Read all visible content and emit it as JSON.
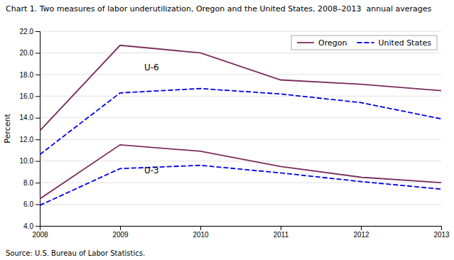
{
  "chart_data": {
    "type": "line",
    "title": "Chart 1. Two measures of labor underutilization, Oregon and the United States, 2008–2013  annual averages",
    "subtitle": "Source: U.S. Bureau of Labor Statistics.",
    "y_label": "Percent",
    "x": [
      2008,
      2009,
      2010,
      2011,
      2012,
      2013
    ],
    "series": [
      {
        "name": "Oregon",
        "color": "#7b2d5e",
        "line_style": "solid",
        "values": [
          12.8,
          20.7,
          20.0,
          17.5,
          17.1,
          16.5
        ]
      },
      {
        "name": "United States",
        "color": "#0000ee",
        "line_style": "dashed",
        "values": [
          10.6,
          16.3,
          16.7,
          16.2,
          15.4,
          13.9
        ]
      },
      {
        "name": "Oregon",
        "color": "#7b2d5e",
        "line_style": "solid",
        "values": [
          6.5,
          11.5,
          10.9,
          9.5,
          8.5,
          8.0
        ]
      },
      {
        "name": "United States",
        "color": "#0000ee",
        "line_style": "dashed",
        "values": [
          5.9,
          9.3,
          9.6,
          8.9,
          8.1,
          7.4
        ]
      }
    ],
    "xlim": [
      2008,
      2013
    ],
    "xticks": [
      2008,
      2009,
      2010,
      2011,
      2012,
      2013
    ],
    "ylim": [
      4.0,
      22.0
    ],
    "yticks": [
      {
        "value": 4.0,
        "label": "4.0"
      },
      {
        "value": 6.0,
        "label": "6.0"
      },
      {
        "value": 8.0,
        "label": "8.0"
      },
      {
        "value": 10.0,
        "label": "10.0"
      },
      {
        "value": 12.0,
        "label": "12.0"
      },
      {
        "value": 14.0,
        "label": "14.0"
      },
      {
        "value": 16.0,
        "label": "16.0"
      },
      {
        "value": 18.0,
        "label": "18.0"
      },
      {
        "value": 20.0,
        "label": "20.0"
      },
      {
        "value": 22.0,
        "label": "22.0"
      }
    ],
    "annotations": [
      {
        "text": "U-6",
        "x": 2009.3,
        "y": 18.4
      },
      {
        "text": "U-3",
        "x": 2009.3,
        "y": 8.85
      }
    ],
    "grid": true,
    "legend": "upper right"
  }
}
